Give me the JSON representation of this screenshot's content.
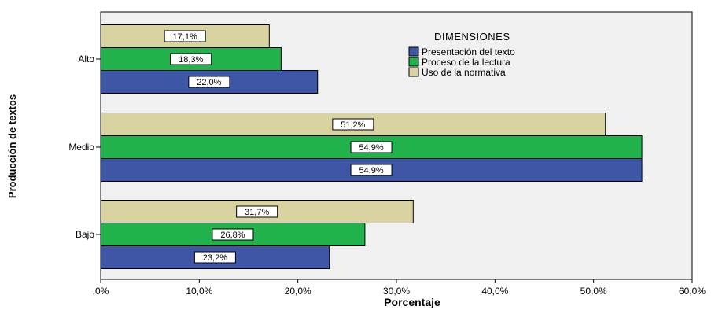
{
  "chart_data": {
    "type": "bar",
    "orientation": "horizontal",
    "categories": [
      "Alto",
      "Medio",
      "Bajo"
    ],
    "series": [
      {
        "name": "Presentación del texto",
        "values": [
          22.0,
          54.9,
          23.2
        ],
        "labels": [
          "22,0%",
          "54,9%",
          "23,2%"
        ],
        "color": "#3f56a6"
      },
      {
        "name": "Proceso de la lectura",
        "values": [
          18.3,
          54.9,
          26.8
        ],
        "labels": [
          "18,3%",
          "54,9%",
          "26,8%"
        ],
        "color": "#22b24c"
      },
      {
        "name": "Uso de la normativa",
        "values": [
          17.1,
          51.2,
          31.7
        ],
        "labels": [
          "17,1%",
          "51,2%",
          "31,7%"
        ],
        "color": "#d8d3a1"
      }
    ],
    "xlabel": "Porcentaje",
    "ylabel": "Producción de textos",
    "xlim": [
      0,
      60
    ],
    "xticks": [
      0,
      10,
      20,
      30,
      40,
      50,
      60
    ],
    "xtick_labels": [
      ",0%",
      "10,0%",
      "20,0%",
      "30,0%",
      "40,0%",
      "50,0%",
      "60,0%"
    ],
    "legend_title": "DIMENSIONES",
    "legend_placement": "top-right",
    "plot_background": "#f0f0f0",
    "grid": false
  }
}
